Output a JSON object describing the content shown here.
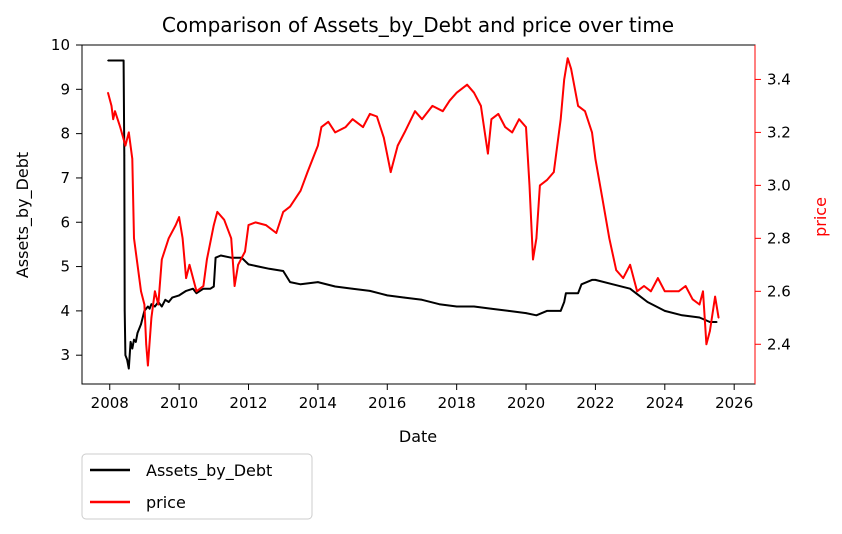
{
  "chart_data": {
    "type": "line",
    "title": "Comparison of Assets_by_Debt and price over time",
    "xlabel": "Date",
    "ylabel_left": "Assets_by_Debt",
    "ylabel_right": "price",
    "xlim": [
      2007.2,
      2026.6
    ],
    "ylim_left": [
      2.35,
      10.0
    ],
    "ylim_right": [
      2.25,
      3.53
    ],
    "x_ticks": [
      2008,
      2010,
      2012,
      2014,
      2016,
      2018,
      2020,
      2022,
      2024,
      2026
    ],
    "y_ticks_left": [
      3,
      4,
      5,
      6,
      7,
      8,
      9,
      10
    ],
    "y_ticks_right": [
      2.4,
      2.6,
      2.8,
      3.0,
      3.2,
      3.4
    ],
    "y_ticks_right_labels": [
      "2.4",
      "2.6",
      "2.8",
      "3.0",
      "3.2",
      "3.4"
    ],
    "grid": false,
    "legend_position": "below-left",
    "colors": {
      "left_series": "#000000",
      "right_series": "#ff0000",
      "right_axis": "#ff0000"
    },
    "series": [
      {
        "name": "Assets_by_Debt",
        "axis": "left",
        "color": "#000000",
        "x": [
          2007.95,
          2008.4,
          2008.4,
          2008.42,
          2008.43,
          2008.45,
          2008.5,
          2008.55,
          2008.6,
          2008.65,
          2008.7,
          2008.75,
          2008.8,
          2008.9,
          2009.0,
          2009.1,
          2009.15,
          2009.2,
          2009.3,
          2009.4,
          2009.5,
          2009.6,
          2009.7,
          2009.8,
          2010.0,
          2010.2,
          2010.4,
          2010.5,
          2010.7,
          2010.9,
          2011.0,
          2011.05,
          2011.2,
          2011.5,
          2011.8,
          2012.0,
          2012.3,
          2012.6,
          2013.0,
          2013.2,
          2013.5,
          2014.0,
          2014.5,
          2015.0,
          2015.5,
          2016.0,
          2016.5,
          2017.0,
          2017.5,
          2018.0,
          2018.5,
          2019.0,
          2019.5,
          2020.0,
          2020.3,
          2020.6,
          2021.0,
          2021.1,
          2021.15,
          2021.5,
          2021.6,
          2021.9,
          2022.0,
          2022.5,
          2023.0,
          2023.5,
          2024.0,
          2024.5,
          2025.0,
          2025.3,
          2025.5
        ],
        "values": [
          9.65,
          9.65,
          9.65,
          7.5,
          4.0,
          3.0,
          2.9,
          2.7,
          3.3,
          3.15,
          3.35,
          3.3,
          3.5,
          3.7,
          4.0,
          4.1,
          4.05,
          4.15,
          4.1,
          4.2,
          4.1,
          4.25,
          4.2,
          4.3,
          4.35,
          4.45,
          4.5,
          4.4,
          4.5,
          4.5,
          4.55,
          5.2,
          5.25,
          5.2,
          5.2,
          5.05,
          5.0,
          4.95,
          4.9,
          4.65,
          4.6,
          4.65,
          4.55,
          4.5,
          4.45,
          4.35,
          4.3,
          4.25,
          4.15,
          4.1,
          4.1,
          4.05,
          4.0,
          3.95,
          3.9,
          4.0,
          4.0,
          4.2,
          4.4,
          4.4,
          4.6,
          4.7,
          4.7,
          4.6,
          4.5,
          4.2,
          4.0,
          3.9,
          3.85,
          3.75,
          3.75
        ]
      },
      {
        "name": "price",
        "axis": "right",
        "color": "#ff0000",
        "x": [
          2007.95,
          2008.05,
          2008.1,
          2008.15,
          2008.3,
          2008.45,
          2008.55,
          2008.65,
          2008.7,
          2008.8,
          2008.9,
          2009.0,
          2009.05,
          2009.1,
          2009.2,
          2009.3,
          2009.4,
          2009.5,
          2009.7,
          2009.9,
          2010.0,
          2010.1,
          2010.2,
          2010.3,
          2010.5,
          2010.7,
          2010.8,
          2011.0,
          2011.1,
          2011.3,
          2011.5,
          2011.6,
          2011.7,
          2011.9,
          2012.0,
          2012.2,
          2012.5,
          2012.8,
          2013.0,
          2013.2,
          2013.5,
          2013.7,
          2014.0,
          2014.1,
          2014.3,
          2014.5,
          2014.8,
          2015.0,
          2015.3,
          2015.5,
          2015.7,
          2015.9,
          2016.1,
          2016.3,
          2016.5,
          2016.8,
          2017.0,
          2017.3,
          2017.6,
          2017.8,
          2018.0,
          2018.3,
          2018.5,
          2018.7,
          2018.9,
          2019.0,
          2019.2,
          2019.4,
          2019.6,
          2019.8,
          2020.0,
          2020.1,
          2020.2,
          2020.3,
          2020.4,
          2020.6,
          2020.8,
          2021.0,
          2021.1,
          2021.2,
          2021.3,
          2021.5,
          2021.7,
          2021.9,
          2022.0,
          2022.2,
          2022.4,
          2022.6,
          2022.8,
          2023.0,
          2023.2,
          2023.4,
          2023.6,
          2023.8,
          2024.0,
          2024.2,
          2024.4,
          2024.6,
          2024.8,
          2025.0,
          2025.1,
          2025.2,
          2025.3,
          2025.45,
          2025.55
        ],
        "values": [
          3.35,
          3.3,
          3.25,
          3.28,
          3.22,
          3.15,
          3.2,
          3.1,
          2.8,
          2.7,
          2.6,
          2.55,
          2.4,
          2.32,
          2.5,
          2.6,
          2.55,
          2.72,
          2.8,
          2.85,
          2.88,
          2.8,
          2.65,
          2.7,
          2.6,
          2.62,
          2.72,
          2.85,
          2.9,
          2.87,
          2.8,
          2.62,
          2.7,
          2.75,
          2.85,
          2.86,
          2.85,
          2.82,
          2.9,
          2.92,
          2.98,
          3.05,
          3.15,
          3.22,
          3.24,
          3.2,
          3.22,
          3.25,
          3.22,
          3.27,
          3.26,
          3.18,
          3.05,
          3.15,
          3.2,
          3.28,
          3.25,
          3.3,
          3.28,
          3.32,
          3.35,
          3.38,
          3.35,
          3.3,
          3.12,
          3.25,
          3.27,
          3.22,
          3.2,
          3.25,
          3.22,
          3.0,
          2.72,
          2.8,
          3.0,
          3.02,
          3.05,
          3.25,
          3.4,
          3.48,
          3.44,
          3.3,
          3.28,
          3.2,
          3.1,
          2.95,
          2.8,
          2.68,
          2.65,
          2.7,
          2.6,
          2.62,
          2.6,
          2.65,
          2.6,
          2.6,
          2.6,
          2.62,
          2.57,
          2.55,
          2.6,
          2.4,
          2.45,
          2.58,
          2.5
        ]
      }
    ]
  }
}
